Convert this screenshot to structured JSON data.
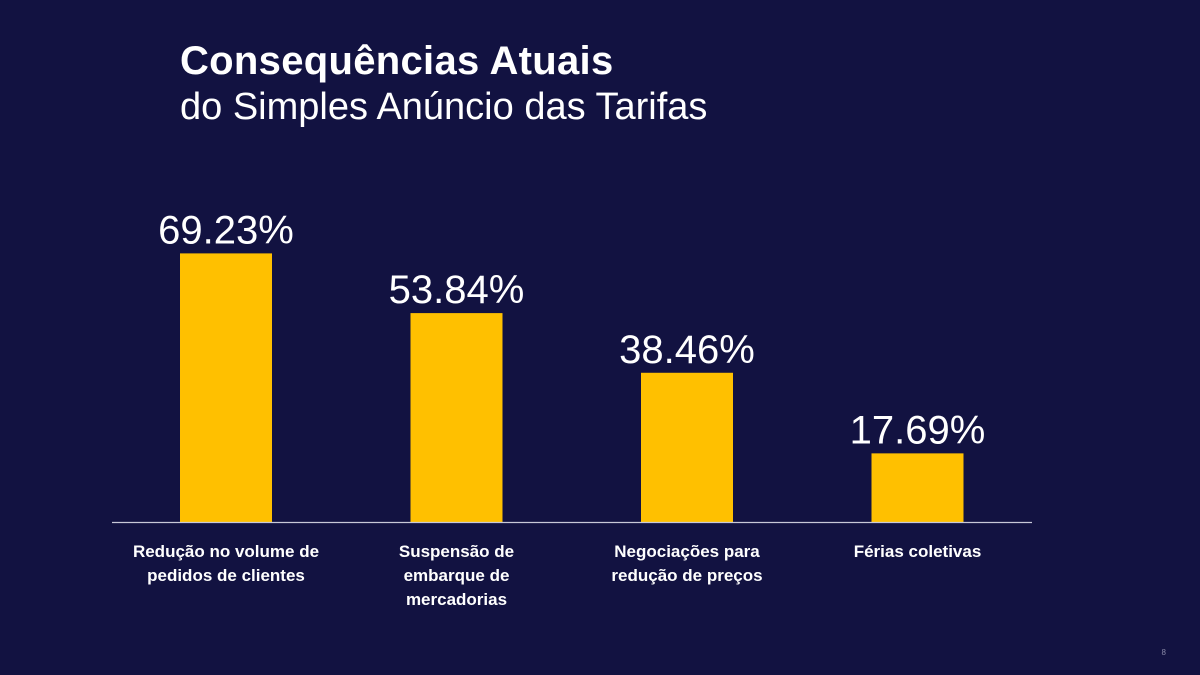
{
  "slide": {
    "title_main": "Consequências Atuais",
    "title_sub": "do Simples Anúncio das Tarifas",
    "page_number": "8"
  },
  "colors": {
    "background": "#121241",
    "bar": "#FFC000",
    "text": "#FFFFFF",
    "axis": "#C8C8D8"
  },
  "chart_data": {
    "type": "bar",
    "categories": [
      [
        "Redução no volume de",
        "pedidos de clientes"
      ],
      [
        "Suspensão de",
        "embarque de",
        "mercadorias"
      ],
      [
        "Negociações para",
        "redução de preços"
      ],
      [
        "Férias coletivas"
      ]
    ],
    "values": [
      69.23,
      53.84,
      38.46,
      17.69
    ],
    "data_labels": [
      "69.23%",
      "53.84%",
      "38.46%",
      "17.69%"
    ],
    "title": "",
    "xlabel": "",
    "ylabel": "",
    "ylim": [
      0,
      100
    ],
    "grid": false,
    "legend": "none"
  }
}
